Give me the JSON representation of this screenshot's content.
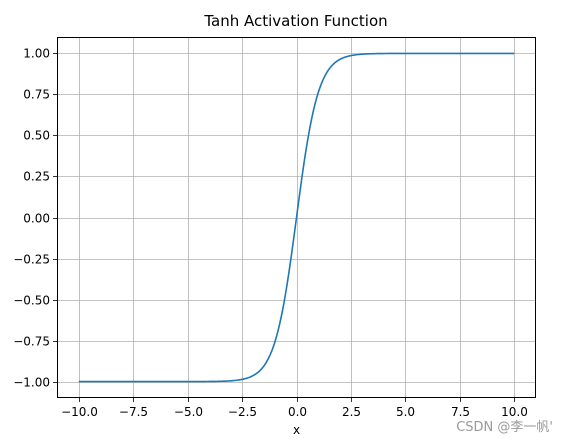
{
  "chart_data": {
    "type": "line",
    "title": "Tanh Activation Function",
    "xlabel": "x",
    "ylabel": "",
    "xlim": [
      -11,
      11
    ],
    "ylim": [
      -1.1,
      1.1
    ],
    "grid": true,
    "x_ticks": [
      -10.0,
      -7.5,
      -5.0,
      -2.5,
      0.0,
      2.5,
      5.0,
      7.5,
      10.0
    ],
    "x_tick_labels": [
      "−10.0",
      "−7.5",
      "−5.0",
      "−2.5",
      "0.0",
      "2.5",
      "5.0",
      "7.5",
      "10.0"
    ],
    "y_ticks": [
      1.0,
      0.75,
      0.5,
      0.25,
      0.0,
      -0.25,
      -0.5,
      -0.75,
      -1.0
    ],
    "y_tick_labels": [
      "1.00",
      "0.75",
      "0.50",
      "0.25",
      "0.00",
      "−0.25",
      "−0.50",
      "−0.75",
      "−1.00"
    ],
    "series": [
      {
        "function": "tanh",
        "color": "#1f77b4",
        "x_range": [
          -10,
          10
        ],
        "x": [
          -10.0,
          -8.0,
          -6.0,
          -4.0,
          -3.0,
          -2.5,
          -2.0,
          -1.5,
          -1.0,
          -0.5,
          0.0,
          0.5,
          1.0,
          1.5,
          2.0,
          2.5,
          3.0,
          4.0,
          6.0,
          8.0,
          10.0
        ],
        "y": [
          -1.0,
          -1.0,
          -1.0,
          -0.999,
          -0.995,
          -0.987,
          -0.964,
          -0.905,
          -0.762,
          -0.462,
          0.0,
          0.462,
          0.762,
          0.905,
          0.964,
          0.987,
          0.995,
          0.999,
          1.0,
          1.0,
          1.0
        ]
      }
    ]
  },
  "watermark": {
    "text": "CSDN @李一帆'"
  }
}
